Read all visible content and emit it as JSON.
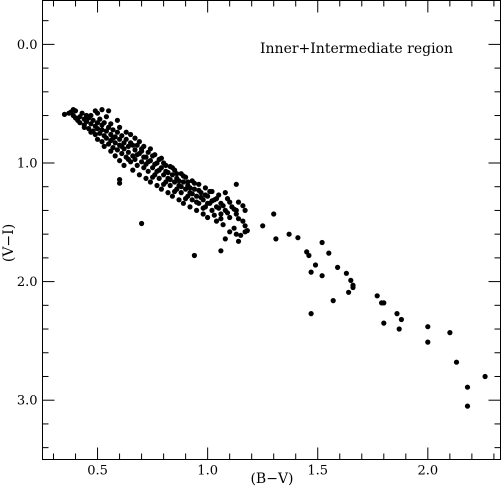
{
  "chart_data": {
    "type": "scatter",
    "title": "",
    "annotation": "Inner+Intermediate region",
    "xlabel": "(B−V)",
    "ylabel": "(V−I)",
    "xlim": [
      0.25,
      2.33
    ],
    "ylim": [
      3.5,
      -0.37
    ],
    "y_inverted": true,
    "grid": false,
    "x_major_ticks": [
      {
        "value": 0.5,
        "label": "0.5"
      },
      {
        "value": 1.0,
        "label": "1.0"
      },
      {
        "value": 1.5,
        "label": "1.5"
      },
      {
        "value": 2.0,
        "label": "2.0"
      }
    ],
    "y_major_ticks": [
      {
        "value": 0.0,
        "label": "0.0"
      },
      {
        "value": 1.0,
        "label": "1.0"
      },
      {
        "value": 2.0,
        "label": "2.0"
      },
      {
        "value": 3.0,
        "label": "3.0"
      }
    ],
    "x_minor_step": 0.1,
    "y_minor_step": 0.2,
    "marker_color": "#000000",
    "points": [
      [
        0.35,
        0.59
      ],
      [
        0.37,
        0.58
      ],
      [
        0.38,
        0.57
      ],
      [
        0.39,
        0.6
      ],
      [
        0.4,
        0.62
      ],
      [
        0.4,
        0.56
      ],
      [
        0.41,
        0.64
      ],
      [
        0.42,
        0.61
      ],
      [
        0.42,
        0.66
      ],
      [
        0.43,
        0.58
      ],
      [
        0.44,
        0.63
      ],
      [
        0.44,
        0.68
      ],
      [
        0.45,
        0.6
      ],
      [
        0.45,
        0.65
      ],
      [
        0.46,
        0.71
      ],
      [
        0.46,
        0.62
      ],
      [
        0.47,
        0.67
      ],
      [
        0.47,
        0.6
      ],
      [
        0.48,
        0.73
      ],
      [
        0.48,
        0.64
      ],
      [
        0.49,
        0.69
      ],
      [
        0.49,
        0.76
      ],
      [
        0.49,
        0.56
      ],
      [
        0.5,
        0.66
      ],
      [
        0.5,
        0.8
      ],
      [
        0.5,
        0.71
      ],
      [
        0.51,
        0.63
      ],
      [
        0.51,
        0.75
      ],
      [
        0.52,
        0.68
      ],
      [
        0.52,
        0.82
      ],
      [
        0.52,
        0.72
      ],
      [
        0.53,
        0.77
      ],
      [
        0.53,
        0.66
      ],
      [
        0.53,
        0.86
      ],
      [
        0.54,
        0.73
      ],
      [
        0.54,
        0.79
      ],
      [
        0.55,
        0.7
      ],
      [
        0.55,
        0.84
      ],
      [
        0.55,
        0.56
      ],
      [
        0.56,
        0.76
      ],
      [
        0.56,
        0.9
      ],
      [
        0.56,
        0.81
      ],
      [
        0.57,
        0.72
      ],
      [
        0.57,
        0.87
      ],
      [
        0.58,
        0.78
      ],
      [
        0.58,
        0.83
      ],
      [
        0.58,
        0.94
      ],
      [
        0.59,
        0.74
      ],
      [
        0.59,
        0.89
      ],
      [
        0.6,
        0.8
      ],
      [
        0.6,
        0.85
      ],
      [
        0.6,
        0.98
      ],
      [
        0.61,
        0.77
      ],
      [
        0.61,
        0.92
      ],
      [
        0.62,
        0.83
      ],
      [
        0.62,
        0.88
      ],
      [
        0.62,
        1.02
      ],
      [
        0.63,
        0.8
      ],
      [
        0.63,
        0.95
      ],
      [
        0.64,
        0.86
      ],
      [
        0.64,
        0.91
      ],
      [
        0.65,
        0.99
      ],
      [
        0.65,
        0.83
      ],
      [
        0.66,
        0.94
      ],
      [
        0.66,
        1.06
      ],
      [
        0.67,
        0.89
      ],
      [
        0.67,
        0.97
      ],
      [
        0.68,
        0.85
      ],
      [
        0.68,
        1.02
      ],
      [
        0.69,
        0.92
      ],
      [
        0.69,
        1.1
      ],
      [
        0.7,
        0.99
      ],
      [
        0.7,
        0.88
      ],
      [
        0.71,
        1.04
      ],
      [
        0.71,
        0.95
      ],
      [
        0.72,
        1.13
      ],
      [
        0.72,
        1.01
      ],
      [
        0.73,
        0.91
      ],
      [
        0.73,
        1.07
      ],
      [
        0.74,
        0.98
      ],
      [
        0.74,
        1.16
      ],
      [
        0.75,
        1.04
      ],
      [
        0.75,
        0.94
      ],
      [
        0.76,
        1.1
      ],
      [
        0.76,
        1.01
      ],
      [
        0.77,
        1.19
      ],
      [
        0.77,
        1.07
      ],
      [
        0.78,
        0.97
      ],
      [
        0.78,
        1.13
      ],
      [
        0.79,
        1.04
      ],
      [
        0.79,
        1.22
      ],
      [
        0.8,
        1.1
      ],
      [
        0.8,
        1.0
      ],
      [
        0.81,
        1.16
      ],
      [
        0.81,
        1.07
      ],
      [
        0.82,
        1.25
      ],
      [
        0.82,
        1.13
      ],
      [
        0.83,
        1.03
      ],
      [
        0.83,
        1.19
      ],
      [
        0.84,
        1.1
      ],
      [
        0.84,
        1.28
      ],
      [
        0.85,
        1.16
      ],
      [
        0.85,
        1.06
      ],
      [
        0.86,
        1.22
      ],
      [
        0.86,
        1.13
      ],
      [
        0.87,
        1.31
      ],
      [
        0.87,
        1.19
      ],
      [
        0.88,
        1.09
      ],
      [
        0.88,
        1.25
      ],
      [
        0.89,
        1.16
      ],
      [
        0.89,
        1.34
      ],
      [
        0.9,
        1.22
      ],
      [
        0.9,
        1.12
      ],
      [
        0.91,
        1.28
      ],
      [
        0.91,
        1.19
      ],
      [
        0.92,
        1.37
      ],
      [
        0.92,
        1.25
      ],
      [
        0.93,
        1.15
      ],
      [
        0.93,
        1.31
      ],
      [
        0.94,
        1.22
      ],
      [
        0.95,
        1.4
      ],
      [
        0.95,
        1.28
      ],
      [
        0.96,
        1.18
      ],
      [
        0.96,
        1.34
      ],
      [
        0.97,
        1.25
      ],
      [
        0.98,
        1.43
      ],
      [
        0.98,
        1.31
      ],
      [
        0.99,
        1.21
      ],
      [
        0.99,
        1.37
      ],
      [
        1.0,
        1.28
      ],
      [
        1.0,
        1.46
      ],
      [
        1.01,
        1.34
      ],
      [
        1.02,
        1.24
      ],
      [
        1.02,
        1.4
      ],
      [
        1.03,
        1.31
      ],
      [
        1.04,
        1.49
      ],
      [
        1.04,
        1.37
      ],
      [
        1.05,
        1.27
      ],
      [
        1.06,
        1.43
      ],
      [
        1.06,
        1.34
      ],
      [
        1.07,
        1.52
      ],
      [
        1.08,
        1.4
      ],
      [
        1.09,
        1.3
      ],
      [
        1.1,
        1.46
      ],
      [
        1.1,
        1.58
      ],
      [
        1.11,
        1.37
      ],
      [
        1.12,
        1.55
      ],
      [
        1.13,
        1.43
      ],
      [
        1.14,
        1.33
      ],
      [
        1.15,
        1.61
      ],
      [
        1.16,
        1.49
      ],
      [
        1.17,
        1.4
      ],
      [
        1.18,
        1.57
      ],
      [
        0.39,
        0.55
      ],
      [
        0.44,
        0.7
      ],
      [
        0.47,
        0.74
      ],
      [
        0.5,
        0.58
      ],
      [
        0.52,
        0.55
      ],
      [
        0.54,
        0.61
      ],
      [
        0.56,
        0.67
      ],
      [
        0.57,
        0.79
      ],
      [
        0.59,
        0.64
      ],
      [
        0.6,
        0.7
      ],
      [
        0.61,
        0.86
      ],
      [
        0.63,
        0.74
      ],
      [
        0.64,
        0.97
      ],
      [
        0.65,
        0.76
      ],
      [
        0.66,
        0.85
      ],
      [
        0.67,
        0.79
      ],
      [
        0.68,
        0.93
      ],
      [
        0.69,
        0.82
      ],
      [
        0.7,
        0.9
      ],
      [
        0.71,
        0.86
      ],
      [
        0.72,
        0.95
      ],
      [
        0.73,
        0.99
      ],
      [
        0.74,
        0.88
      ],
      [
        0.75,
        1.12
      ],
      [
        0.76,
        0.93
      ],
      [
        0.77,
        1.0
      ],
      [
        0.78,
        1.06
      ],
      [
        0.79,
        0.96
      ],
      [
        0.8,
        1.18
      ],
      [
        0.81,
        1.02
      ],
      [
        0.82,
        1.08
      ],
      [
        0.83,
        1.14
      ],
      [
        0.84,
        1.04
      ],
      [
        0.85,
        1.24
      ],
      [
        0.86,
        1.09
      ],
      [
        0.87,
        1.15
      ],
      [
        0.88,
        1.2
      ],
      [
        0.89,
        1.11
      ],
      [
        0.9,
        1.3
      ],
      [
        0.91,
        1.16
      ],
      [
        0.92,
        1.21
      ],
      [
        0.93,
        1.26
      ],
      [
        0.94,
        1.17
      ],
      [
        0.95,
        1.33
      ],
      [
        0.96,
        1.23
      ],
      [
        0.97,
        1.29
      ],
      [
        0.98,
        1.38
      ],
      [
        0.99,
        1.27
      ],
      [
        1.0,
        1.34
      ],
      [
        1.01,
        1.24
      ],
      [
        1.02,
        1.32
      ],
      [
        1.03,
        1.44
      ],
      [
        1.04,
        1.3
      ],
      [
        1.05,
        1.38
      ],
      [
        1.06,
        1.47
      ],
      [
        1.07,
        1.36
      ],
      [
        1.08,
        1.25
      ],
      [
        1.09,
        1.42
      ],
      [
        1.1,
        1.33
      ],
      [
        1.12,
        1.39
      ],
      [
        1.14,
        1.47
      ],
      [
        1.16,
        1.36
      ],
      [
        0.6,
        1.14
      ],
      [
        0.6,
        1.17
      ],
      [
        0.7,
        1.51
      ],
      [
        0.94,
        1.78
      ],
      [
        1.06,
        1.74
      ],
      [
        1.08,
        1.64
      ],
      [
        1.13,
        1.6
      ],
      [
        1.14,
        1.66
      ],
      [
        1.17,
        1.58
      ],
      [
        1.13,
        1.18
      ],
      [
        1.17,
        1.53
      ],
      [
        1.13,
        1.4
      ],
      [
        1.25,
        1.53
      ],
      [
        1.3,
        1.43
      ],
      [
        1.31,
        1.64
      ],
      [
        1.37,
        1.6
      ],
      [
        1.41,
        1.63
      ],
      [
        1.45,
        1.75
      ],
      [
        1.46,
        1.78
      ],
      [
        1.47,
        1.92
      ],
      [
        1.47,
        2.27
      ],
      [
        1.49,
        1.86
      ],
      [
        1.52,
        1.67
      ],
      [
        1.52,
        1.95
      ],
      [
        1.55,
        1.76
      ],
      [
        1.57,
        2.16
      ],
      [
        1.59,
        1.88
      ],
      [
        1.63,
        1.93
      ],
      [
        1.64,
        2.09
      ],
      [
        1.65,
        1.99
      ],
      [
        1.66,
        2.05
      ],
      [
        1.66,
        2.03
      ],
      [
        1.77,
        2.12
      ],
      [
        1.79,
        2.18
      ],
      [
        1.8,
        2.18
      ],
      [
        1.8,
        2.35
      ],
      [
        1.86,
        2.27
      ],
      [
        1.87,
        2.4
      ],
      [
        1.88,
        2.32
      ],
      [
        2.0,
        2.38
      ],
      [
        2.0,
        2.51
      ],
      [
        2.1,
        2.43
      ],
      [
        2.13,
        2.68
      ],
      [
        2.18,
        2.89
      ],
      [
        2.18,
        3.05
      ],
      [
        2.26,
        2.8
      ]
    ]
  }
}
